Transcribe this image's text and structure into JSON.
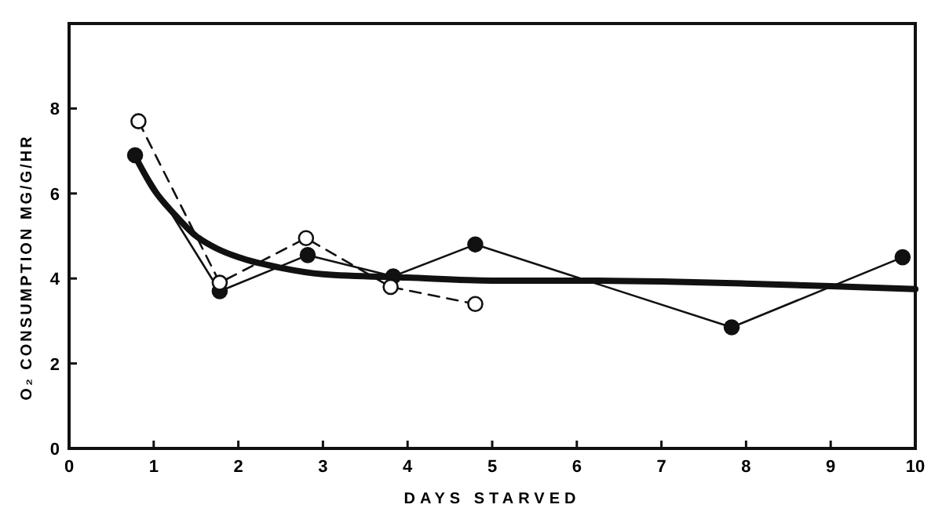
{
  "chart_data": {
    "type": "line",
    "xlabel": "DAYS STARVED",
    "ylabel": "O₂ CONSUMPTION MG/G/HR",
    "xlim": [
      0,
      10
    ],
    "ylim": [
      0,
      10
    ],
    "xticks": [
      0,
      1,
      2,
      3,
      4,
      5,
      6,
      7,
      8,
      9,
      10
    ],
    "yticks": [
      0,
      2,
      4,
      6,
      8
    ],
    "grid": false,
    "series": [
      {
        "color": "#111111",
        "marker": "circle",
        "line_style": "solid",
        "x": [
          0.78,
          1.78,
          2.82,
          3.83,
          4.8,
          7.83,
          9.85
        ],
        "values": [
          6.9,
          3.7,
          4.55,
          4.05,
          4.8,
          2.85,
          4.5
        ]
      },
      {
        "color": "#111111",
        "marker": "circle",
        "line_style": "dashed",
        "x": [
          0.82,
          1.78,
          2.8,
          3.8,
          4.8
        ],
        "values": [
          7.7,
          3.9,
          4.95,
          3.8,
          3.4
        ]
      },
      {
        "color": "#111111",
        "marker": "none",
        "line_style": "solid",
        "x": [
          0.8,
          1,
          1.25,
          1.5,
          1.75,
          2,
          2.5,
          3,
          4,
          5,
          6,
          7,
          8,
          9,
          10
        ],
        "values": [
          6.8,
          6.1,
          5.5,
          5.0,
          4.7,
          4.5,
          4.25,
          4.1,
          4.02,
          3.95,
          3.95,
          3.93,
          3.88,
          3.82,
          3.75
        ]
      }
    ]
  }
}
